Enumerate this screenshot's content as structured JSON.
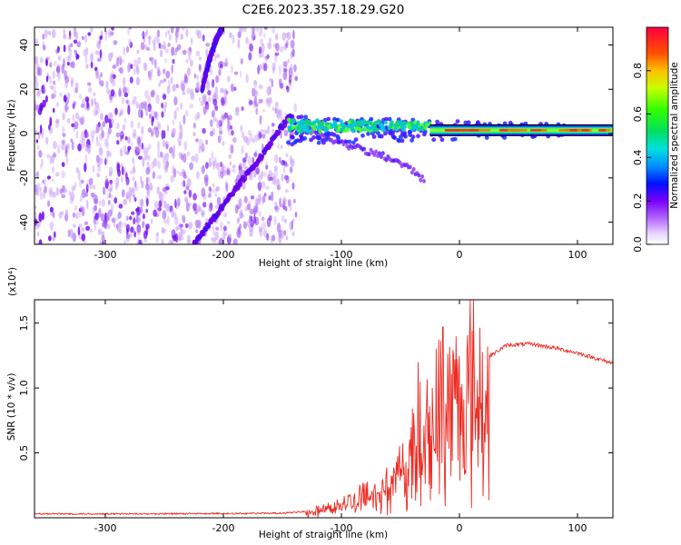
{
  "title": "C2E6.2023.357.18.29.G20",
  "chart_data": [
    {
      "type": "heatmap",
      "name": "spectrogram",
      "xlabel": "Height of straight line (km)",
      "ylabel": "Frequency (Hz)",
      "xlim": [
        -360,
        130
      ],
      "ylim": [
        -50,
        48
      ],
      "xticks": [
        -300,
        -200,
        -100,
        0,
        100
      ],
      "yticks": [
        -40,
        -20,
        0,
        20,
        40
      ],
      "xtick_labels": [
        "-300",
        "-200",
        "-100",
        "0",
        "100"
      ],
      "ytick_labels": [
        "-40",
        "-20",
        "0",
        "20",
        "40"
      ],
      "noise_region": {
        "x": [
          -360,
          -138
        ],
        "y": [
          -50,
          48
        ]
      },
      "chirp_lower": {
        "points": [
          [
            -225,
            -50
          ],
          [
            -205,
            -36
          ],
          [
            -185,
            -22
          ],
          [
            -165,
            -8
          ],
          [
            -152,
            2
          ],
          [
            -143,
            8
          ]
        ]
      },
      "chirp_upper": {
        "points": [
          [
            -218,
            20
          ],
          [
            -212,
            33
          ],
          [
            -205,
            44
          ],
          [
            -201,
            48
          ]
        ]
      },
      "main_band": {
        "x_start": -145,
        "x_end": 130,
        "center_hz": 1.5,
        "width_hz_start": 10,
        "width_hz_end": 3
      },
      "lower_tail": {
        "points": [
          [
            -130,
            2
          ],
          [
            -90,
            -6
          ],
          [
            -55,
            -12
          ],
          [
            -35,
            -18
          ],
          [
            -30,
            -22
          ]
        ]
      },
      "colorbar": {
        "label": "Normalized spectral amplitude",
        "range": [
          0,
          1
        ],
        "ticks": [
          0.0,
          0.2,
          0.4,
          0.6,
          0.8
        ],
        "tick_labels": [
          "0.0",
          "0.2",
          "0.4",
          "0.6",
          "0.8"
        ]
      }
    },
    {
      "type": "line",
      "name": "snr",
      "xlabel": "Height of straight line (km)",
      "ylabel": "SNR (10 * v/v)",
      "scale_label": "(x10⁴)",
      "color": "#ee2a22",
      "xlim": [
        -360,
        130
      ],
      "ylim": [
        0,
        1.68
      ],
      "xticks": [
        -300,
        -200,
        -100,
        0,
        100
      ],
      "yticks": [
        0.5,
        1.0,
        1.5
      ],
      "xtick_labels": [
        "-300",
        "-200",
        "-100",
        "0",
        "100"
      ],
      "ytick_labels": [
        "0.5",
        "1.0",
        "1.5"
      ],
      "envelope": [
        [
          -360,
          0.03
        ],
        [
          -250,
          0.03
        ],
        [
          -150,
          0.035
        ],
        [
          -125,
          0.05
        ],
        [
          -110,
          0.1
        ],
        [
          -95,
          0.15
        ],
        [
          -80,
          0.22
        ],
        [
          -60,
          0.3
        ],
        [
          -45,
          0.5
        ],
        [
          -30,
          0.8
        ],
        [
          -20,
          1.0
        ],
        [
          -10,
          1.1
        ],
        [
          0,
          1.15
        ],
        [
          10,
          1.2
        ],
        [
          20,
          1.22
        ],
        [
          30,
          1.27
        ],
        [
          40,
          1.33
        ],
        [
          60,
          1.34
        ],
        [
          80,
          1.31
        ],
        [
          100,
          1.27
        ],
        [
          130,
          1.19
        ]
      ],
      "peaks": [
        [
          -35,
          1.2
        ],
        [
          -14,
          1.47
        ],
        [
          12,
          1.68
        ],
        [
          -5,
          1.25
        ]
      ]
    }
  ]
}
